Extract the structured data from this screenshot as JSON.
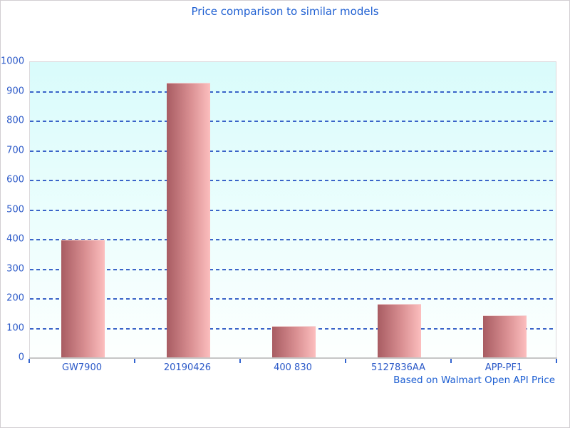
{
  "chart_data": {
    "type": "bar",
    "title": "Price comparison to similar models",
    "categories": [
      "GW7900",
      "20190426",
      "400 830",
      "5127836AA",
      "APP-PF1"
    ],
    "values": [
      395,
      925,
      104,
      178,
      140
    ],
    "xlabel": "",
    "ylabel": "",
    "ylim": [
      0,
      1000
    ],
    "ytick_step": 100,
    "grid": "horizontal-dashed",
    "legend": "none",
    "annotation": "Based on Walmart Open API Price",
    "colors": {
      "title_text": "#1e5fd2",
      "axis_text": "#2b59c8",
      "gridline": "#3a64c8",
      "bar_gradient_left": "#a85c62",
      "bar_gradient_right": "#fcbebe",
      "plot_bg_top": "#d9fbfb",
      "plot_bg_bottom": "#fdfffe",
      "axis_line": "#c6c6c6",
      "frame_border": "#d2ced2"
    }
  }
}
